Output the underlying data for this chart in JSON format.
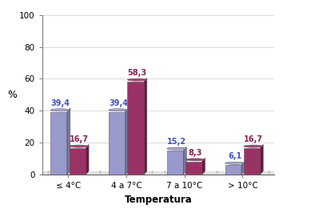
{
  "categories": [
    "≤ 4°C",
    "4 a 7°C",
    "7 a 10°C",
    "> 10°C"
  ],
  "series1_values": [
    39.4,
    39.4,
    15.2,
    6.1
  ],
  "series2_values": [
    16.7,
    58.3,
    8.3,
    16.7
  ],
  "series1_body_color": "#9999cc",
  "series1_side_color": "#7777aa",
  "series1_top_color": "#aaaadd",
  "series2_body_color": "#993366",
  "series2_side_color": "#771144",
  "series2_top_color": "#aa4477",
  "series1_label_color": "#4455bb",
  "series2_label_color": "#882255",
  "wall_color": "#d8d8d8",
  "floor_color": "#cccccc",
  "plot_bg": "#ffffff",
  "ylabel": "%",
  "xlabel": "Temperatura",
  "ylim_max": 100,
  "yticks": [
    0,
    20,
    40,
    60,
    80,
    100
  ],
  "label_fontsize": 7,
  "xlabel_fontsize": 8.5,
  "ylabel_fontsize": 9,
  "tick_fontsize": 7.5
}
